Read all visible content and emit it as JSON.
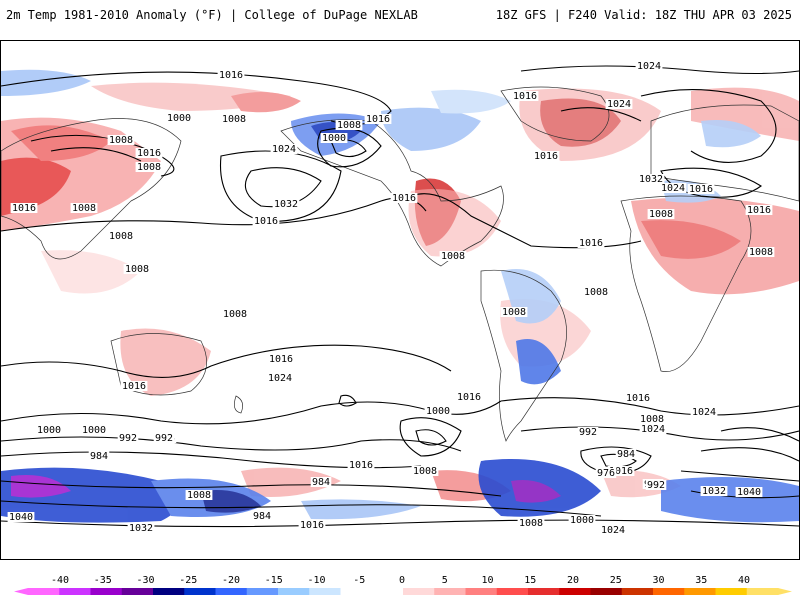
{
  "header": {
    "title": "2m Temp 1981-2010 Anomaly (°F) | College of DuPage NEXLAB",
    "run_info": "18Z GFS | F240 Valid: 18Z THU APR 03 2025"
  },
  "isobar_labels": [
    "1016",
    "1000",
    "1008",
    "1008",
    "1016",
    "1008",
    "1032",
    "1016",
    "1024",
    "1000",
    "1008",
    "1016",
    "1016",
    "1016",
    "1008",
    "1008",
    "1016",
    "1024",
    "1008",
    "1008",
    "1016",
    "1024",
    "1032",
    "1024",
    "1016",
    "1016",
    "1008",
    "1008",
    "1008",
    "1008",
    "1016",
    "1016",
    "1024",
    "1016",
    "1024",
    "1016",
    "1016",
    "1008",
    "1008",
    "1000",
    "992",
    "984",
    "1016",
    "1000",
    "992",
    "984",
    "992",
    "1008",
    "1016",
    "1000",
    "1016",
    "1024",
    "992",
    "984",
    "976",
    "992",
    "1032",
    "1040",
    "1040",
    "984",
    "984",
    "1008",
    "1016",
    "1008",
    "1000",
    "1024",
    "1032"
  ],
  "colorbar": {
    "ticks": [
      "-40",
      "-35",
      "-30",
      "-25",
      "-20",
      "-15",
      "-10",
      "-5",
      "0",
      "5",
      "10",
      "15",
      "20",
      "25",
      "30",
      "35",
      "40"
    ],
    "colors": [
      "#ff66ff",
      "#cc33ff",
      "#9900cc",
      "#660099",
      "#000080",
      "#0033cc",
      "#3366ff",
      "#6699ff",
      "#99ccff",
      "#cce6ff",
      "#ffffff",
      "#ffffff",
      "#ffd9d9",
      "#ffb3b3",
      "#ff8080",
      "#ff4d4d",
      "#e62e2e",
      "#cc0000",
      "#990000",
      "#cc3300",
      "#ff6600",
      "#ff9900",
      "#ffcc00",
      "#ffe066"
    ]
  }
}
